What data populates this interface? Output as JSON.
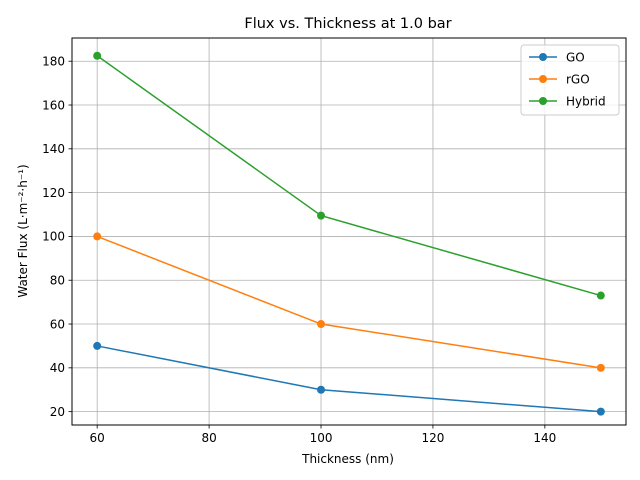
{
  "chart_data": {
    "type": "line",
    "title": "Flux vs. Thickness at 1.0 bar",
    "xlabel": "Thickness (nm)",
    "ylabel": "Water Flux (L·m⁻²·h⁻¹)",
    "xlim": [
      55.5,
      154.5
    ],
    "ylim": [
      13.9,
      190.6
    ],
    "xticks": [
      60,
      80,
      100,
      120,
      140
    ],
    "yticks": [
      20,
      40,
      60,
      80,
      100,
      120,
      140,
      160,
      180
    ],
    "grid": true,
    "legend_position": "top-right",
    "x": [
      60,
      100,
      150
    ],
    "series": [
      {
        "name": "GO",
        "color": "#1f77b4",
        "values": [
          50,
          30,
          20
        ]
      },
      {
        "name": "rGO",
        "color": "#ff7f0e",
        "values": [
          100,
          60,
          40
        ]
      },
      {
        "name": "Hybrid",
        "color": "#2ca02c",
        "values": [
          182.5,
          109.5,
          73
        ]
      }
    ]
  }
}
